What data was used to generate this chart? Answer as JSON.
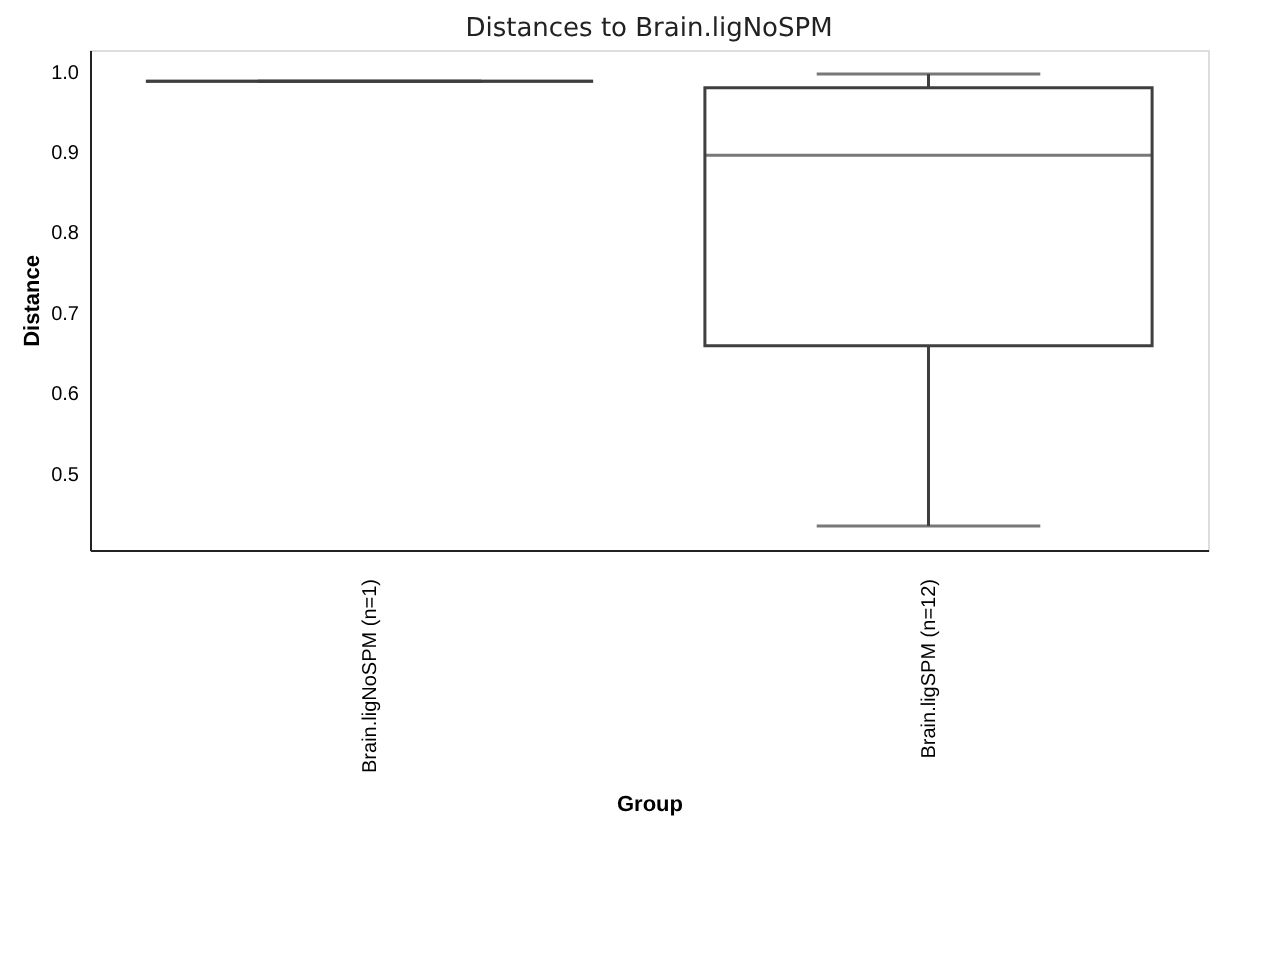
{
  "chart_data": {
    "type": "box",
    "title": "Distances to Brain.ligNoSPM",
    "xlabel": "Group",
    "ylabel": "Distance",
    "categories": [
      "Brain.ligNoSPM (n=1)",
      "Brain.ligSPM (n=12)"
    ],
    "series": [
      {
        "color": "#3f3f3f",
        "boxes": [
          {
            "low": 0.988,
            "q1": 0.988,
            "median": 0.988,
            "q3": 0.988,
            "high": 0.988
          },
          {
            "low": 0.435,
            "q1": 0.659,
            "median": 0.896,
            "q3": 0.98,
            "high": 0.997
          }
        ]
      }
    ],
    "ylim": [
      0.405,
      1.027
    ],
    "yticks": [
      {
        "value": 0.5,
        "label": "0.5"
      },
      {
        "value": 0.6,
        "label": "0.6"
      },
      {
        "value": 0.7,
        "label": "0.7"
      },
      {
        "value": 0.8,
        "label": "0.8"
      },
      {
        "value": 0.9,
        "label": "0.9"
      },
      {
        "value": 1.0,
        "label": "1.0"
      }
    ],
    "grid": false
  }
}
